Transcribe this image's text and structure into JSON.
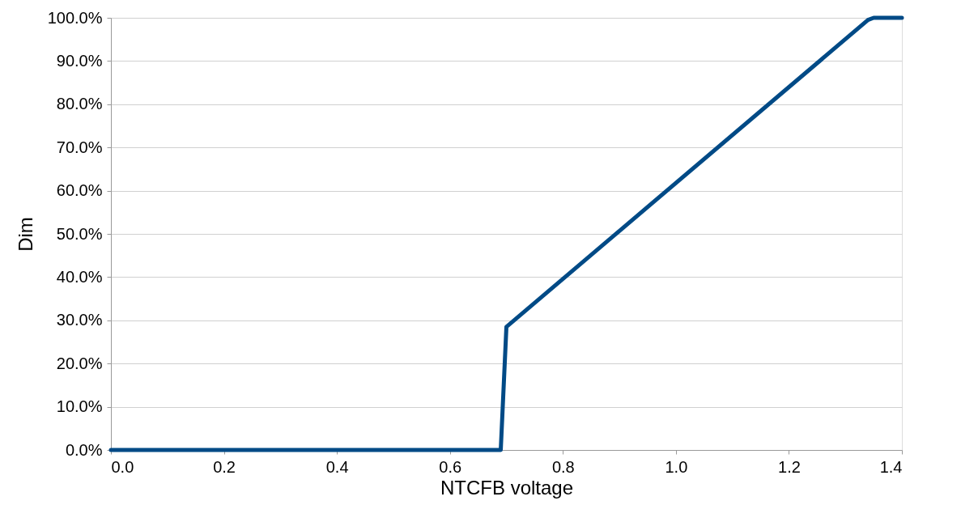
{
  "chart_data": {
    "type": "line",
    "xlabel": "NTCFB voltage",
    "ylabel": "Dim",
    "x": [
      0.0,
      0.69,
      0.7,
      1.34,
      1.35,
      1.4
    ],
    "series": [
      {
        "color": "#004a86",
        "values": [
          0.0,
          0.0,
          28.5,
          99.5,
          100.0,
          100.0
        ]
      }
    ],
    "xlim": [
      0.0,
      1.4
    ],
    "xticks": [
      {
        "value": 0.0,
        "label": "0.0"
      },
      {
        "value": 0.2,
        "label": "0.2"
      },
      {
        "value": 0.4,
        "label": "0.4"
      },
      {
        "value": 0.6,
        "label": "0.6"
      },
      {
        "value": 0.8,
        "label": "0.8"
      },
      {
        "value": 1.0,
        "label": "1.0"
      },
      {
        "value": 1.2,
        "label": "1.2"
      },
      {
        "value": 1.4,
        "label": "1.4"
      }
    ],
    "ylim": [
      0,
      100
    ],
    "yticks": [
      {
        "value": 0,
        "label": "0.0%"
      },
      {
        "value": 10,
        "label": "10.0%"
      },
      {
        "value": 20,
        "label": "20.0%"
      },
      {
        "value": 30,
        "label": "30.0%"
      },
      {
        "value": 40,
        "label": "40.0%"
      },
      {
        "value": 50,
        "label": "50.0%"
      },
      {
        "value": 60,
        "label": "60.0%"
      },
      {
        "value": 70,
        "label": "70.0%"
      },
      {
        "value": 80,
        "label": "80.0%"
      },
      {
        "value": 90,
        "label": "90.0%"
      },
      {
        "value": 100,
        "label": "100.0%"
      }
    ],
    "grid": "y",
    "marker": "none",
    "line_style": "solid"
  }
}
